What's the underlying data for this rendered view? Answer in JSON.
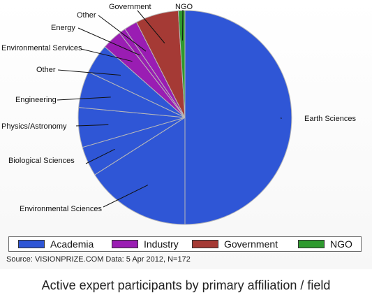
{
  "chart_data": {
    "type": "pie",
    "slices": [
      {
        "label": "Earth Sciences",
        "value": 50.0,
        "group": "Academia"
      },
      {
        "label": "Environmental Sciences",
        "value": 16.0,
        "group": "Academia"
      },
      {
        "label": "Biological Sciences",
        "value": 4.5,
        "group": "Academia"
      },
      {
        "label": "Physics/Astronomy",
        "value": 6.0,
        "group": "Academia"
      },
      {
        "label": "Engineering",
        "value": 5.5,
        "group": "Academia"
      },
      {
        "label": "Other",
        "value": 4.5,
        "group": "Academia"
      },
      {
        "label": "Environmental Services",
        "value": 3.0,
        "group": "Industry"
      },
      {
        "label": "Energy",
        "value": 1.0,
        "group": "Industry"
      },
      {
        "label": "Other",
        "value": 2.0,
        "group": "Industry"
      },
      {
        "label": "Government",
        "value": 6.5,
        "group": "Government"
      },
      {
        "label": "NGO",
        "value": 1.0,
        "group": "NGO"
      }
    ],
    "legend": [
      {
        "name": "Academia",
        "color": "#2f56d6"
      },
      {
        "name": "Industry",
        "color": "#9a1db3"
      },
      {
        "name": "Government",
        "color": "#a53a35"
      },
      {
        "name": "NGO",
        "color": "#2f9a2f"
      }
    ],
    "legend_placement": "bottom"
  },
  "source_text": "Source: VISIONPRIZE.COM  Data:  5 Apr 2012, N=172",
  "caption": "Active expert participants by primary affiliation / field"
}
